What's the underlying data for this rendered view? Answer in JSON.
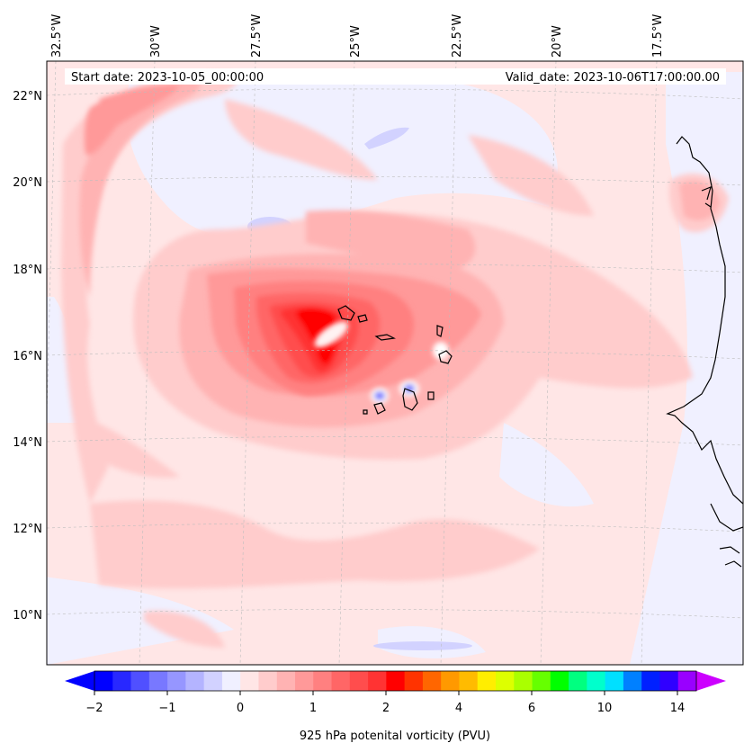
{
  "header": {
    "start_date": "Start date: 2023-10-05_00:00:00",
    "valid_date": "Valid_date: 2023-10-06T17:00:00.00"
  },
  "map": {
    "lon_labels": [
      "32.5°W",
      "30°W",
      "27.5°W",
      "25°W",
      "22.5°W",
      "20°W",
      "17.5°W"
    ],
    "lat_labels": [
      "22°N",
      "20°N",
      "18°N",
      "16°N",
      "14°N",
      "12°N",
      "10°N"
    ],
    "gridlines": "dashed",
    "coastline_color": "#000000"
  },
  "colorbar": {
    "label": "925 hPa potenital vorticity (PVU)",
    "ticks": [
      "−2",
      "−1",
      "0",
      "1",
      "2",
      "4",
      "6",
      "10",
      "14"
    ],
    "extend": "both",
    "colors": [
      "#0000ff",
      "#2828ff",
      "#5050ff",
      "#7878ff",
      "#9696ff",
      "#b4b4ff",
      "#d2d2ff",
      "#f0f0ff",
      "#ffe6e6",
      "#ffcccc",
      "#ffb3b3",
      "#ff9999",
      "#ff8080",
      "#ff6666",
      "#ff4d4d",
      "#ff3333",
      "#ff0000",
      "#ff3300",
      "#ff6600",
      "#ff9900",
      "#ffbb00",
      "#ffee00",
      "#ddff00",
      "#aaff00",
      "#66ff00",
      "#00ff00",
      "#00ff80",
      "#00ffcc",
      "#00e0ff",
      "#0080ff",
      "#0020ff",
      "#3000ff",
      "#9900ff"
    ],
    "min_color": "#0000ff",
    "max_color": "#cc00ff"
  }
}
